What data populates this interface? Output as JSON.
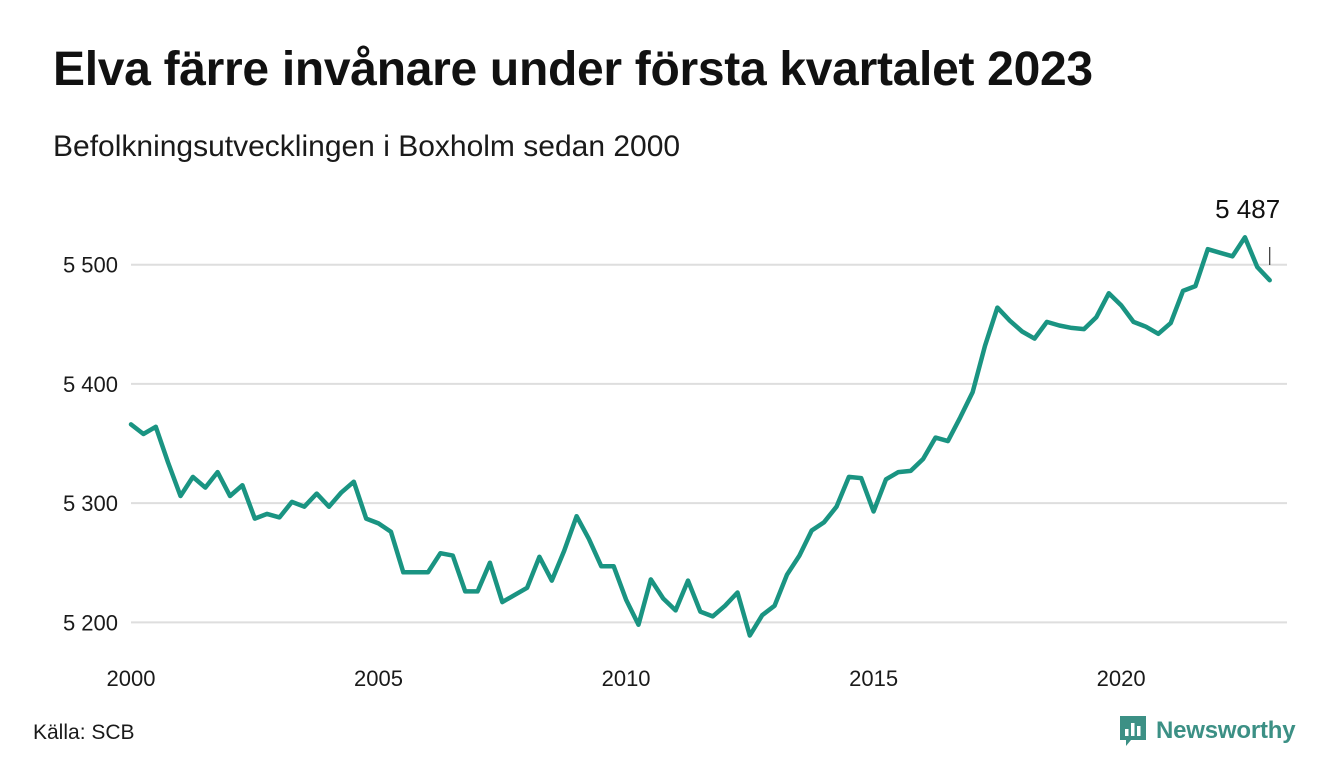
{
  "title": "Elva färre invånare under första kvartalet 2023",
  "subtitle": "Befolkningsutvecklingen i Boxholm sedan 2000",
  "source": "Källa: SCB",
  "brand": {
    "name": "Newsworthy",
    "icon": "bar-chart-speech-bubble-icon",
    "color": "#3c9085"
  },
  "chart_data": {
    "type": "line",
    "title": "Elva färre invånare under första kvartalet 2023",
    "subtitle": "Befolkningsutvecklingen i Boxholm sedan 2000",
    "xlabel": "",
    "ylabel": "",
    "grid": true,
    "line_color": "#1a9482",
    "x_ticks": [
      2000,
      2005,
      2010,
      2015,
      2020
    ],
    "x_tick_labels": [
      "2000",
      "2005",
      "2010",
      "2015",
      "2020"
    ],
    "y_ticks": [
      5200,
      5300,
      5400,
      5500
    ],
    "y_tick_labels": [
      "5 200",
      "5 300",
      "5 400",
      "5 500"
    ],
    "xlim": [
      2000,
      2023.35
    ],
    "ylim": [
      5181,
      5540
    ],
    "annotation": {
      "label": "5 487",
      "x": 2023.0,
      "y": 5487
    },
    "series": [
      {
        "x": [
          2000.0,
          2000.25,
          2000.5,
          2000.75,
          2001.0,
          2001.25,
          2001.5,
          2001.75,
          2002.0,
          2002.25,
          2002.5,
          2002.75,
          2003.0,
          2003.25,
          2003.5,
          2003.75,
          2004.0,
          2004.25,
          2004.5,
          2004.75,
          2005.0,
          2005.25,
          2005.5,
          2005.75,
          2006.0,
          2006.25,
          2006.5,
          2006.75,
          2007.0,
          2007.25,
          2007.5,
          2007.75,
          2008.0,
          2008.25,
          2008.5,
          2008.75,
          2009.0,
          2009.25,
          2009.5,
          2009.75,
          2010.0,
          2010.25,
          2010.5,
          2010.75,
          2011.0,
          2011.25,
          2011.5,
          2011.75,
          2012.0,
          2012.25,
          2012.5,
          2012.75,
          2013.0,
          2013.25,
          2013.5,
          2013.75,
          2014.0,
          2014.25,
          2014.5,
          2014.75,
          2015.0,
          2015.25,
          2015.5,
          2015.75,
          2016.0,
          2016.25,
          2016.5,
          2016.75,
          2017.0,
          2017.25,
          2017.5,
          2017.75,
          2018.0,
          2018.25,
          2018.5,
          2018.75,
          2019.0,
          2019.25,
          2019.5,
          2019.75,
          2020.0,
          2020.25,
          2020.5,
          2020.75,
          2021.0,
          2021.25,
          2021.5,
          2021.75,
          2022.0,
          2022.25,
          2022.5,
          2022.75,
          2023.0
        ],
        "values": [
          5366,
          5358,
          5364,
          5334,
          5306,
          5322,
          5313,
          5326,
          5306,
          5315,
          5287,
          5291,
          5288,
          5301,
          5297,
          5308,
          5297,
          5309,
          5318,
          5287,
          5283,
          5276,
          5242,
          5242,
          5242,
          5258,
          5256,
          5226,
          5226,
          5250,
          5217,
          5223,
          5229,
          5255,
          5235,
          5260,
          5289,
          5270,
          5247,
          5247,
          5219,
          5198,
          5236,
          5220,
          5210,
          5235,
          5209,
          5205,
          5214,
          5225,
          5189,
          5206,
          5214,
          5240,
          5256,
          5277,
          5284,
          5297,
          5322,
          5321,
          5293,
          5320,
          5326,
          5327,
          5337,
          5355,
          5352,
          5372,
          5393,
          5432,
          5464,
          5453,
          5444,
          5438,
          5452,
          5449,
          5447,
          5446,
          5456,
          5476,
          5466,
          5452,
          5448,
          5442,
          5451,
          5478,
          5482,
          5513,
          5510,
          5507,
          5523,
          5498,
          5487
        ]
      }
    ]
  }
}
